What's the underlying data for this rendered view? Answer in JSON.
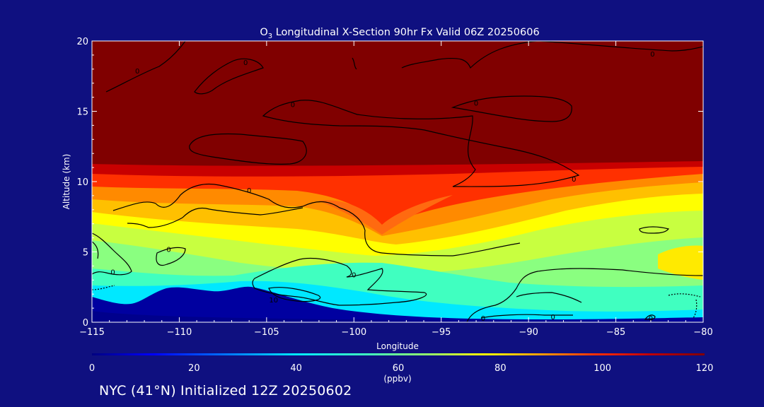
{
  "chart_data": {
    "type": "heatmap",
    "title_base": "O",
    "title_sub": "3",
    "title_rest": " Longitudinal X-Section 90hr  Fx Valid 06Z 20250606",
    "xlabel": "Longitude",
    "ylabel": "Altitude (km)",
    "xlim": [
      -115,
      -80
    ],
    "ylim": [
      0,
      20
    ],
    "x_ticks": [
      -115,
      -110,
      -105,
      -100,
      -95,
      -90,
      -85,
      -80
    ],
    "x_tick_labels": [
      "−115",
      "−110",
      "−105",
      "−100",
      "−95",
      "−90",
      "−85",
      "−80"
    ],
    "y_ticks": [
      0,
      5,
      10,
      15,
      20
    ],
    "y_tick_labels": [
      "0",
      "5",
      "10",
      "15",
      "20"
    ],
    "colorbar": {
      "range": [
        0,
        120
      ],
      "ticks": [
        0,
        20,
        40,
        60,
        80,
        100,
        120
      ],
      "tick_labels": [
        "0",
        "20",
        "40",
        "60",
        "80",
        "100",
        "120"
      ],
      "unit": "(ppbv)",
      "colors": [
        "#000080",
        "#0000ff",
        "#0080ff",
        "#00e0ff",
        "#40ffc0",
        "#a0ff60",
        "#ffff00",
        "#ffa000",
        "#ff3000",
        "#c00000",
        "#800000"
      ]
    },
    "contour_labels": [
      {
        "text": "0",
        "x": -112.4,
        "y": 17.9
      },
      {
        "text": "0",
        "x": -106.2,
        "y": 18.5
      },
      {
        "text": "0",
        "x": -103.5,
        "y": 15.5
      },
      {
        "text": "0",
        "x": -93.0,
        "y": 15.6
      },
      {
        "text": "0",
        "x": -82.9,
        "y": 19.1
      },
      {
        "text": "0",
        "x": -106.0,
        "y": 9.4
      },
      {
        "text": "0",
        "x": -87.4,
        "y": 10.2
      },
      {
        "text": "0",
        "x": -110.6,
        "y": 5.2
      },
      {
        "text": "0",
        "x": -113.8,
        "y": 3.6
      },
      {
        "text": "0",
        "x": -100.0,
        "y": 3.4
      },
      {
        "text": "10",
        "x": -104.6,
        "y": 1.6
      },
      {
        "text": "0",
        "x": -92.6,
        "y": 0.3
      },
      {
        "text": "0",
        "x": -88.6,
        "y": 0.4
      },
      {
        "text": "0",
        "x": -83.0,
        "y": 0.3
      }
    ]
  },
  "footer": {
    "text": "NYC (41°N) Initialized 12Z 20250602"
  }
}
